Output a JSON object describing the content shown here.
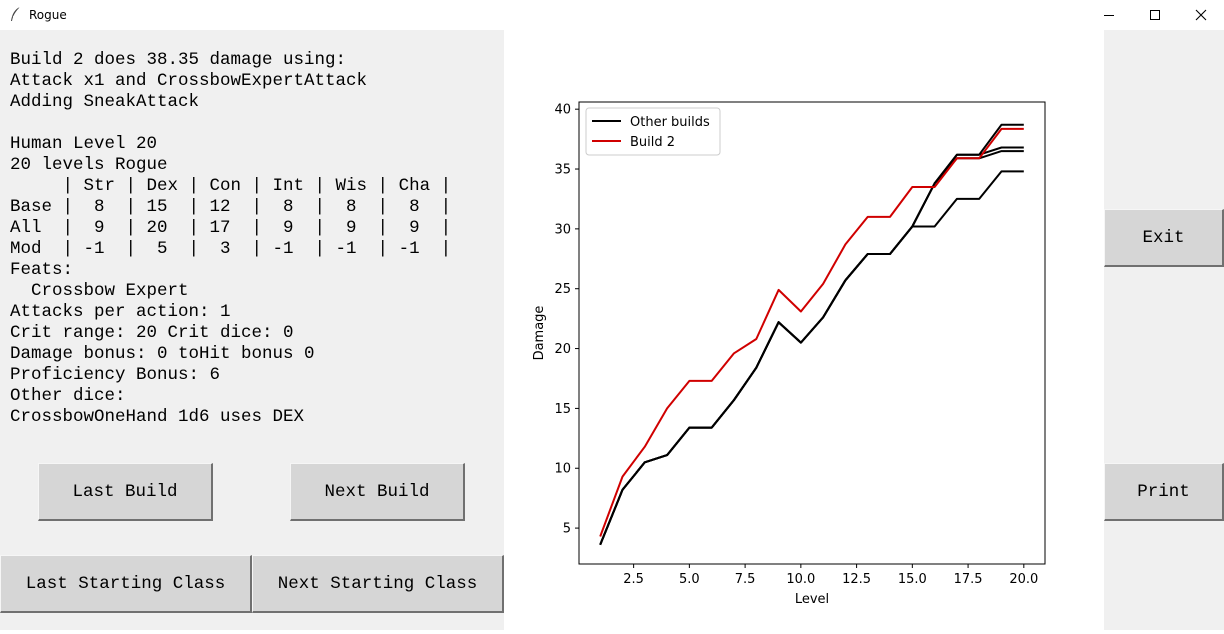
{
  "window": {
    "title": "Rogue"
  },
  "info_lines": [
    "Build 2 does 38.35 damage using:",
    "Attack x1 and CrossbowExpertAttack",
    "Adding SneakAttack",
    "",
    "Human Level 20",
    "20 levels Rogue",
    "     | Str | Dex | Con | Int | Wis | Cha |",
    "Base |  8  | 15  | 12  |  8  |  8  |  8  |",
    "All  |  9  | 20  | 17  |  9  |  9  |  9  |",
    "Mod  | -1  |  5  |  3  | -1  | -1  | -1  |",
    "Feats:",
    "  Crossbow Expert",
    "Attacks per action: 1",
    "Crit range: 20 Crit dice: 0",
    "Damage bonus: 0 toHit bonus 0",
    "Proficiency Bonus: 6",
    "Other dice:",
    "CrossbowOneHand 1d6 uses DEX"
  ],
  "buttons": {
    "last_build": "Last Build",
    "next_build": "Next Build",
    "last_starting_class": "Last Starting Class",
    "next_starting_class": "Next Starting Class",
    "exit": "Exit",
    "print": "Print"
  },
  "chart_data": {
    "type": "line",
    "xlabel": "Level",
    "ylabel": "Damage",
    "xlim": [
      0.05,
      20.95
    ],
    "ylim": [
      2.0,
      40.6
    ],
    "xticks": [
      2.5,
      5.0,
      7.5,
      10.0,
      12.5,
      15.0,
      17.5,
      20.0
    ],
    "xtick_labels": [
      "2.5",
      "5.0",
      "7.5",
      "10.0",
      "12.5",
      "15.0",
      "17.5",
      "20.0"
    ],
    "yticks": [
      5,
      10,
      15,
      20,
      25,
      30,
      35,
      40
    ],
    "ytick_labels": [
      "5",
      "10",
      "15",
      "20",
      "25",
      "30",
      "35",
      "40"
    ],
    "grid": false,
    "legend_position": "top-left",
    "legend": [
      {
        "label": "Other builds",
        "color": "#000000"
      },
      {
        "label": "Build 2",
        "color": "#d00000"
      }
    ],
    "series": [
      {
        "color": "#000000",
        "x": [
          1,
          2,
          3,
          4,
          5,
          6,
          7,
          8,
          9,
          10,
          11,
          12,
          13,
          14,
          15,
          16,
          17,
          18,
          19,
          20
        ],
        "values": [
          3.6,
          8.2,
          10.5,
          11.1,
          13.4,
          13.4,
          15.7,
          18.4,
          22.2,
          20.5,
          22.6,
          25.7,
          27.9,
          27.9,
          30.2,
          30.2,
          32.5,
          32.5,
          34.8,
          34.8
        ]
      },
      {
        "color": "#000000",
        "x": [
          1,
          2,
          3,
          4,
          5,
          6,
          7,
          8,
          9,
          10,
          11,
          12,
          13,
          14,
          15,
          16,
          17,
          18,
          19,
          20
        ],
        "values": [
          3.6,
          8.2,
          10.5,
          11.1,
          13.4,
          13.4,
          15.7,
          18.4,
          22.2,
          20.5,
          22.6,
          25.7,
          27.9,
          27.9,
          30.2,
          33.8,
          35.9,
          35.9,
          36.5,
          36.5
        ]
      },
      {
        "color": "#000000",
        "x": [
          1,
          2,
          3,
          4,
          5,
          6,
          7,
          8,
          9,
          10,
          11,
          12,
          13,
          14,
          15,
          16,
          17,
          18,
          19,
          20
        ],
        "values": [
          3.6,
          8.2,
          10.5,
          11.1,
          13.4,
          13.4,
          15.7,
          18.4,
          22.2,
          20.5,
          22.6,
          25.7,
          27.9,
          27.9,
          30.2,
          33.8,
          36.2,
          36.2,
          36.8,
          36.8
        ]
      },
      {
        "color": "#000000",
        "x": [
          1,
          2,
          3,
          4,
          5,
          6,
          7,
          8,
          9,
          10,
          11,
          12,
          13,
          14,
          15,
          16,
          17,
          18,
          19,
          20
        ],
        "values": [
          3.6,
          8.2,
          10.5,
          11.1,
          13.4,
          13.4,
          15.7,
          18.4,
          22.2,
          20.5,
          22.6,
          25.7,
          27.9,
          27.9,
          30.2,
          33.8,
          36.2,
          36.2,
          38.7,
          38.7
        ]
      },
      {
        "name": "Build 2",
        "color": "#d00000",
        "x": [
          1,
          2,
          3,
          4,
          5,
          6,
          7,
          8,
          9,
          10,
          11,
          12,
          13,
          14,
          15,
          16,
          17,
          18,
          19,
          20
        ],
        "values": [
          4.3,
          9.3,
          11.8,
          15.0,
          17.3,
          17.3,
          19.6,
          20.8,
          24.9,
          23.1,
          25.4,
          28.7,
          31.0,
          31.0,
          33.5,
          33.5,
          35.9,
          35.9,
          38.35,
          38.35
        ]
      }
    ]
  }
}
